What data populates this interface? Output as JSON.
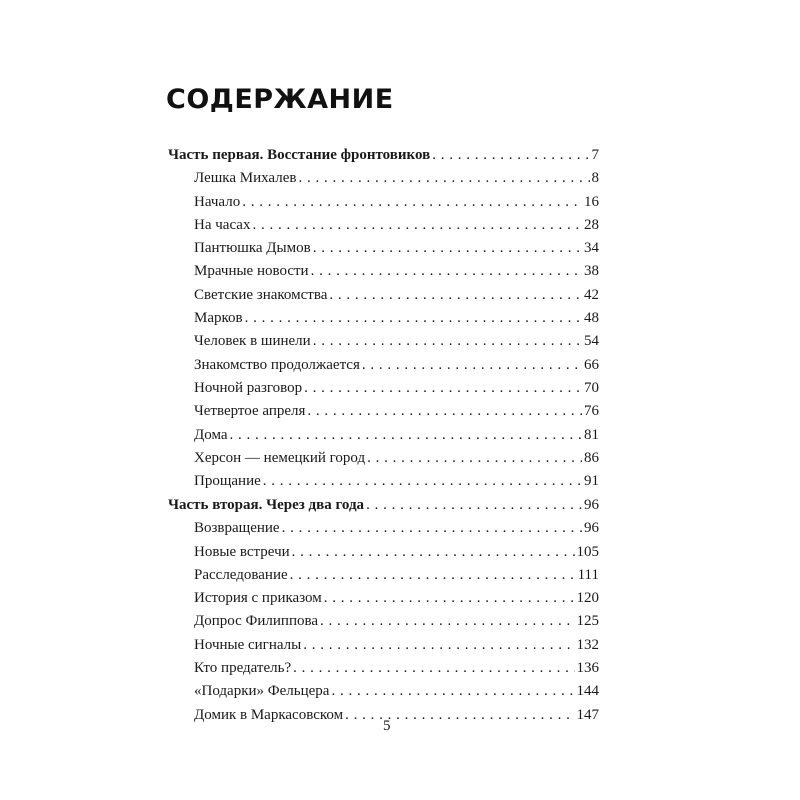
{
  "title": "СОДЕРЖАНИЕ",
  "parts": [
    {
      "title": "Часть первая. Восстание фронтовиков",
      "page": "7",
      "chapters": [
        {
          "title": "Лешка Михалев",
          "page": "8"
        },
        {
          "title": "Начало",
          "page": "16"
        },
        {
          "title": "На часах",
          "page": "28"
        },
        {
          "title": "Пантюшка Дымов",
          "page": "34"
        },
        {
          "title": "Мрачные новости",
          "page": "38"
        },
        {
          "title": "Светские знакомства",
          "page": "42"
        },
        {
          "title": "Марков",
          "page": "48"
        },
        {
          "title": "Человек в шинели",
          "page": "54"
        },
        {
          "title": "Знакомство продолжается",
          "page": "66"
        },
        {
          "title": "Ночной разговор",
          "page": "70"
        },
        {
          "title": "Четвертое апреля",
          "page": "76"
        },
        {
          "title": "Дома",
          "page": "81"
        },
        {
          "title": "Херсон — немецкий город",
          "page": "86"
        },
        {
          "title": "Прощание",
          "page": "91"
        }
      ]
    },
    {
      "title": "Часть вторая. Через два года",
      "page": "96",
      "chapters": [
        {
          "title": "Возвращение",
          "page": "96"
        },
        {
          "title": "Новые встречи",
          "page": "105"
        },
        {
          "title": "Расследование",
          "page": "111"
        },
        {
          "title": "История с приказом",
          "page": "120"
        },
        {
          "title": "Допрос Филиппова",
          "page": "125"
        },
        {
          "title": "Ночные сигналы",
          "page": "132"
        },
        {
          "title": "Кто предатель?",
          "page": "136"
        },
        {
          "title": "«Подарки» Фельцера",
          "page": "144"
        },
        {
          "title": "Домик в Маркасовском",
          "page": "147"
        }
      ]
    }
  ],
  "page_number": "5"
}
